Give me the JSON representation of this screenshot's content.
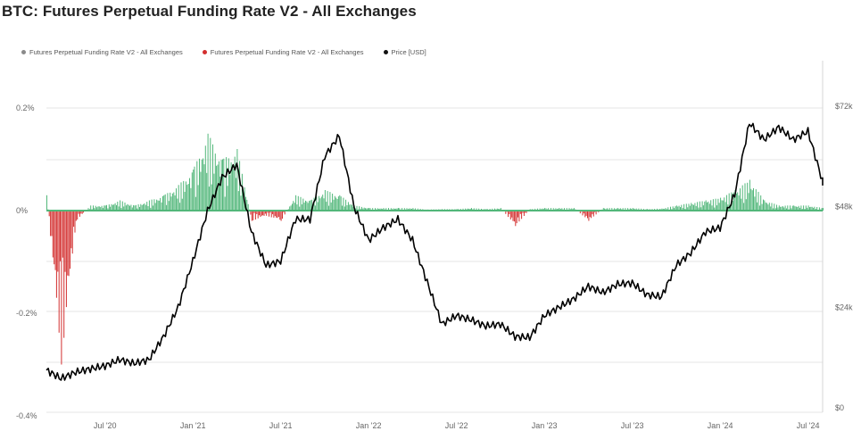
{
  "title": "BTC: Futures Perpetual Funding Rate V2 - All Exchanges",
  "legend": [
    {
      "label": "Futures Perpetual Funding Rate V2 - All Exchanges",
      "color": "#8a8a8a"
    },
    {
      "label": "Futures Perpetual Funding Rate V2 - All Exchanges",
      "color": "#d32f2f"
    },
    {
      "label": "Price [USD]",
      "color": "#111111"
    }
  ],
  "colors": {
    "positive": "#52b77a",
    "negative": "#d32f2f",
    "price": "#000000",
    "grid": "#e6e6e6"
  },
  "chart_data": {
    "type": "line",
    "title": "BTC: Futures Perpetual Funding Rate V2 - All Exchanges",
    "xlabel": "",
    "y_left_label": "",
    "y_right_label": "",
    "y_left_ticks": [
      "0.2%",
      "0%",
      "-0.2%",
      "-0.4%"
    ],
    "y_left_range": [
      -0.4,
      0.2
    ],
    "y_right_ticks": [
      "$72k",
      "$48k",
      "$24k",
      "$0"
    ],
    "y_right_range": [
      0,
      72000
    ],
    "x_ticks": [
      "Jul '20",
      "Jan '21",
      "Jul '21",
      "Jan '22",
      "Jul '22",
      "Jan '23",
      "Jul '23",
      "Jan '24",
      "Jul '24"
    ],
    "x_range": [
      "2020-03",
      "2024-08"
    ],
    "grid": true,
    "legend_position": "top-left",
    "series": [
      {
        "name": "Price [USD]",
        "axis": "right",
        "x": [
          "2020-03",
          "2020-04",
          "2020-05",
          "2020-06",
          "2020-07",
          "2020-08",
          "2020-09",
          "2020-10",
          "2020-11",
          "2020-12",
          "2021-01",
          "2021-02",
          "2021-03",
          "2021-04",
          "2021-05",
          "2021-06",
          "2021-07",
          "2021-08",
          "2021-09",
          "2021-10",
          "2021-11",
          "2021-12",
          "2022-01",
          "2022-02",
          "2022-03",
          "2022-04",
          "2022-05",
          "2022-06",
          "2022-07",
          "2022-08",
          "2022-09",
          "2022-10",
          "2022-11",
          "2022-12",
          "2023-01",
          "2023-02",
          "2023-03",
          "2023-04",
          "2023-05",
          "2023-06",
          "2023-07",
          "2023-08",
          "2023-09",
          "2023-10",
          "2023-11",
          "2023-12",
          "2024-01",
          "2024-02",
          "2024-03",
          "2024-04",
          "2024-05",
          "2024-06",
          "2024-07",
          "2024-08"
        ],
        "values": [
          9000,
          7000,
          8500,
          9300,
          10000,
          11500,
          10600,
          11500,
          17000,
          24000,
          35000,
          47000,
          55000,
          58000,
          42000,
          34000,
          35000,
          45000,
          45000,
          60000,
          65000,
          48000,
          40000,
          43000,
          45000,
          40000,
          30000,
          20000,
          22000,
          21000,
          19500,
          20000,
          17000,
          16800,
          22000,
          24000,
          26000,
          29000,
          27500,
          29500,
          29800,
          27000,
          26500,
          34000,
          37000,
          42000,
          43000,
          51000,
          68000,
          64000,
          67000,
          64000,
          66000,
          54000
        ]
      },
      {
        "name": "Futures Perpetual Funding Rate V2 - All Exchanges",
        "axis": "left",
        "sign": "positive/negative",
        "x": [
          "2020-03",
          "2020-04",
          "2020-05",
          "2020-06",
          "2020-07",
          "2020-08",
          "2020-09",
          "2020-10",
          "2020-11",
          "2020-12",
          "2021-01",
          "2021-02",
          "2021-03",
          "2021-04",
          "2021-05",
          "2021-06",
          "2021-07",
          "2021-08",
          "2021-09",
          "2021-10",
          "2021-11",
          "2021-12",
          "2022-01",
          "2022-02",
          "2022-03",
          "2022-04",
          "2022-05",
          "2022-06",
          "2022-07",
          "2022-08",
          "2022-09",
          "2022-10",
          "2022-11",
          "2022-12",
          "2023-01",
          "2023-02",
          "2023-03",
          "2023-04",
          "2023-05",
          "2023-06",
          "2023-07",
          "2023-08",
          "2023-09",
          "2023-10",
          "2023-11",
          "2023-12",
          "2024-01",
          "2024-02",
          "2024-03",
          "2024-04",
          "2024-05",
          "2024-06",
          "2024-07",
          "2024-08"
        ],
        "values": [
          0.03,
          -0.3,
          -0.02,
          0.01,
          0.01,
          0.02,
          0.01,
          0.02,
          0.03,
          0.05,
          0.08,
          0.15,
          0.1,
          0.12,
          -0.02,
          -0.01,
          -0.02,
          0.03,
          0.02,
          0.04,
          0.03,
          0.01,
          0.005,
          0.005,
          0.005,
          0.005,
          0.002,
          0.003,
          0.003,
          0.005,
          0.003,
          0.005,
          -0.03,
          0.003,
          0.005,
          0.005,
          0.005,
          -0.02,
          0.005,
          0.005,
          0.005,
          0.003,
          0.004,
          0.01,
          0.015,
          0.02,
          0.025,
          0.04,
          0.06,
          0.02,
          0.01,
          0.01,
          0.01,
          0.005
        ]
      }
    ]
  }
}
